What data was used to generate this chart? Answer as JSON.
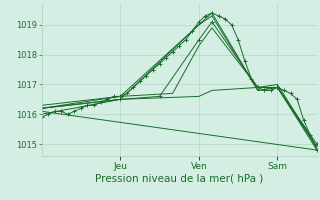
{
  "xlabel": "Pression niveau de la mer( hPa )",
  "x_ticks_labels": [
    "Jeu",
    "Ven",
    "Sam"
  ],
  "x_ticks_pos": [
    24,
    48,
    72
  ],
  "xlim": [
    0,
    84
  ],
  "ylim": [
    1014.6,
    1019.7
  ],
  "yticks": [
    1015,
    1016,
    1017,
    1018,
    1019
  ],
  "background_color": "#d4eee4",
  "grid_color": "#b0cfc0",
  "line_color": "#1a6b28",
  "fig_bg": "#d4eee4",
  "series": [
    {
      "x": [
        0,
        2,
        4,
        6,
        8,
        10,
        12,
        14,
        16,
        18,
        20,
        22,
        24,
        26,
        28,
        30,
        32,
        34,
        36,
        38,
        40,
        42,
        44,
        46,
        48,
        50,
        52,
        54,
        56,
        58,
        60,
        62,
        64,
        66,
        68,
        70,
        72,
        74,
        76,
        78,
        80,
        82,
        84
      ],
      "y": [
        1015.9,
        1016.0,
        1016.1,
        1016.1,
        1016.0,
        1016.1,
        1016.2,
        1016.3,
        1016.3,
        1016.4,
        1016.5,
        1016.6,
        1016.6,
        1016.7,
        1016.9,
        1017.1,
        1017.3,
        1017.5,
        1017.7,
        1017.9,
        1018.1,
        1018.3,
        1018.5,
        1018.8,
        1019.1,
        1019.3,
        1019.4,
        1019.3,
        1019.2,
        1019.0,
        1018.5,
        1017.8,
        1017.2,
        1016.9,
        1016.8,
        1016.8,
        1016.9,
        1016.8,
        1016.7,
        1016.5,
        1015.8,
        1015.3,
        1014.8
      ],
      "marker": "+"
    },
    {
      "x": [
        0,
        24,
        48,
        52,
        66,
        72,
        84
      ],
      "y": [
        1016.2,
        1016.5,
        1019.0,
        1019.4,
        1016.8,
        1016.9,
        1014.8
      ],
      "marker": null
    },
    {
      "x": [
        0,
        24,
        48,
        52,
        66,
        72,
        84
      ],
      "y": [
        1016.3,
        1016.6,
        1019.0,
        1019.3,
        1016.8,
        1016.9,
        1014.9
      ],
      "marker": null
    },
    {
      "x": [
        0,
        24,
        40,
        48,
        52,
        66,
        72,
        84
      ],
      "y": [
        1016.2,
        1016.6,
        1016.7,
        1018.3,
        1018.9,
        1016.9,
        1016.9,
        1014.9
      ],
      "marker": null
    },
    {
      "x": [
        0,
        24,
        48,
        52,
        66,
        72,
        84
      ],
      "y": [
        1016.0,
        1016.5,
        1016.6,
        1016.8,
        1016.9,
        1017.0,
        1014.9
      ],
      "marker": null
    },
    {
      "x": [
        0,
        84
      ],
      "y": [
        1016.1,
        1014.8
      ],
      "marker": null
    },
    {
      "x": [
        0,
        24,
        36,
        48,
        52,
        66,
        72,
        84
      ],
      "y": [
        1016.2,
        1016.5,
        1016.6,
        1018.5,
        1019.1,
        1016.9,
        1016.9,
        1015.0
      ],
      "marker": "+"
    }
  ]
}
